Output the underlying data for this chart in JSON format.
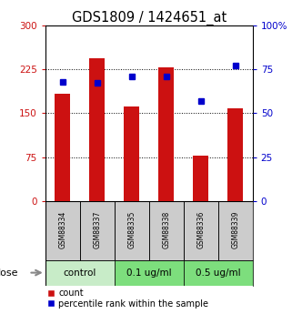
{
  "title": "GDS1809 / 1424651_at",
  "samples": [
    "GSM88334",
    "GSM88337",
    "GSM88335",
    "GSM88338",
    "GSM88336",
    "GSM88339"
  ],
  "bar_values": [
    183,
    243,
    162,
    228,
    78,
    158
  ],
  "dot_values": [
    68,
    67,
    71,
    71,
    57,
    77
  ],
  "groups": [
    {
      "label": "control",
      "color": "#c8ecc8",
      "span": [
        0,
        2
      ]
    },
    {
      "label": "0.1 ug/ml",
      "color": "#7dde7d",
      "span": [
        2,
        4
      ]
    },
    {
      "label": "0.5 ug/ml",
      "color": "#7dde7d",
      "span": [
        4,
        6
      ]
    }
  ],
  "bar_color": "#cc1111",
  "dot_color": "#0000cc",
  "left_ylim": [
    0,
    300
  ],
  "right_ylim": [
    0,
    100
  ],
  "left_yticks": [
    0,
    75,
    150,
    225,
    300
  ],
  "right_yticks": [
    0,
    25,
    50,
    75,
    100
  ],
  "left_ytick_labels": [
    "0",
    "75",
    "150",
    "225",
    "300"
  ],
  "right_ytick_labels": [
    "0",
    "25",
    "50",
    "75",
    "100%"
  ],
  "dose_label": "dose",
  "legend_bar_label": "count",
  "legend_dot_label": "percentile rank within the sample",
  "bg_color": "#ffffff",
  "label_bg_color": "#cccccc",
  "bar_width": 0.45
}
